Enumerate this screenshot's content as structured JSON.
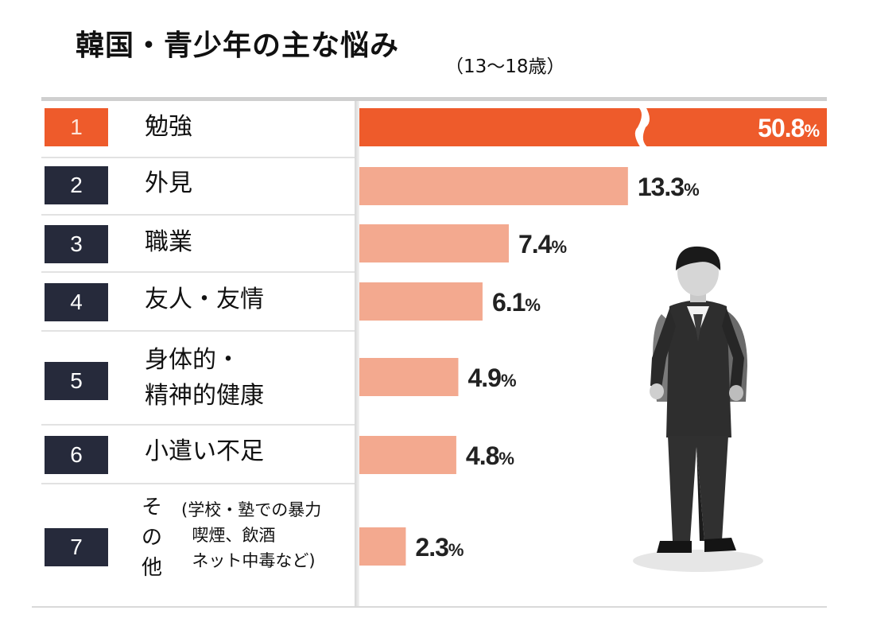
{
  "header": {
    "title": "韓国・青少年の主な悩み",
    "subtitle": "（13〜18歳）"
  },
  "colors": {
    "top_bar": "#ee5b2b",
    "bars": "#f3a98f",
    "rank_badge": "#262a3b"
  },
  "chart_data": {
    "type": "bar",
    "orientation": "horizontal",
    "title": "韓国・青少年の主な悩み",
    "subtitle": "（13〜18歳）",
    "value_suffix": "%",
    "axis_break_on_first_bar": true,
    "categories": [
      {
        "rank": "1",
        "label": "勉強",
        "value": 50.8,
        "value_text": "50.8"
      },
      {
        "rank": "2",
        "label": "外見",
        "value": 13.3,
        "value_text": "13.3"
      },
      {
        "rank": "3",
        "label": "職業",
        "value": 7.4,
        "value_text": "7.4"
      },
      {
        "rank": "4",
        "label": "友人・友情",
        "value": 6.1,
        "value_text": "6.1"
      },
      {
        "rank": "5",
        "label_line1": "身体的・",
        "label_line2": "精神的健康",
        "value": 4.9,
        "value_text": "4.9"
      },
      {
        "rank": "6",
        "label": "小遣い不足",
        "value": 4.8,
        "value_text": "4.8"
      },
      {
        "rank": "7",
        "label_side": "その他",
        "label_note": "(学校・塾での暴力\n  喫煙、飲酒\n  ネット中毒など)",
        "value": 2.3,
        "value_text": "2.3"
      }
    ]
  }
}
